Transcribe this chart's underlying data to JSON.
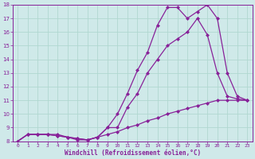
{
  "xlabel": "Windchill (Refroidissement éolien,°C)",
  "xlim": [
    -0.5,
    23.5
  ],
  "ylim": [
    8,
    18
  ],
  "xticks": [
    0,
    1,
    2,
    3,
    4,
    5,
    6,
    7,
    8,
    9,
    10,
    11,
    12,
    13,
    14,
    15,
    16,
    17,
    18,
    19,
    20,
    21,
    22,
    23
  ],
  "yticks": [
    8,
    9,
    10,
    11,
    12,
    13,
    14,
    15,
    16,
    17,
    18
  ],
  "bg_color": "#cfe9e9",
  "line_color": "#882299",
  "grid_color": "#b0d8d0",
  "line1_y": [
    8.0,
    8.5,
    8.5,
    8.5,
    8.5,
    8.3,
    8.1,
    8.1,
    8.3,
    8.5,
    8.7,
    9.0,
    9.2,
    9.5,
    9.7,
    10.0,
    10.2,
    10.4,
    10.6,
    10.8,
    11.0,
    11.0,
    11.0,
    11.0
  ],
  "line2_y": [
    8.0,
    8.5,
    8.5,
    8.5,
    8.4,
    8.3,
    8.2,
    8.1,
    8.3,
    9.0,
    9.0,
    10.5,
    11.5,
    13.0,
    14.0,
    15.0,
    15.5,
    16.0,
    17.0,
    15.8,
    13.0,
    11.3,
    11.1,
    11.0
  ],
  "line3_y": [
    8.0,
    8.5,
    8.5,
    8.5,
    8.4,
    8.3,
    8.2,
    8.1,
    8.3,
    9.0,
    10.0,
    11.5,
    13.2,
    14.5,
    16.5,
    17.8,
    17.8,
    17.0,
    17.5,
    18.0,
    17.0,
    13.0,
    11.3,
    11.0
  ]
}
